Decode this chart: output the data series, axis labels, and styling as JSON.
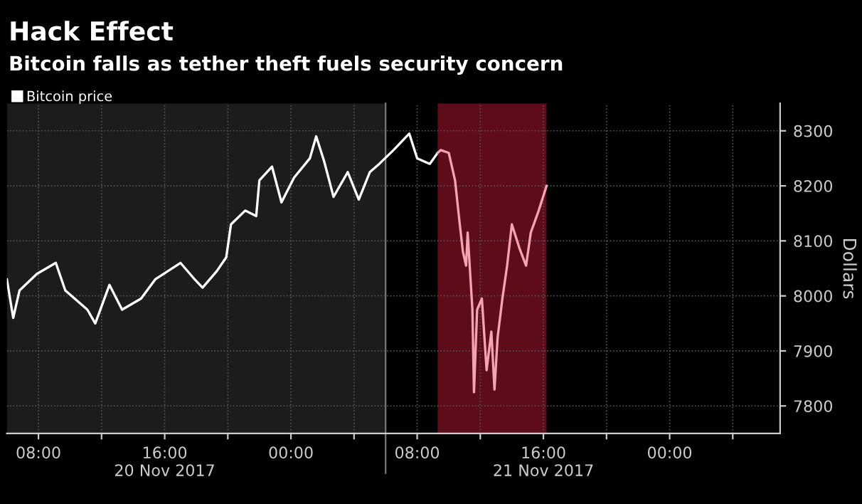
{
  "chart_data": {
    "type": "line",
    "title": "Hack Effect",
    "subtitle": "Bitcoin falls as tether theft fuels security concern",
    "ylabel": "Dollars",
    "series": [
      {
        "name": "Bitcoin price",
        "color": "#ffffff",
        "x": [
          "2017-11-20T06:00",
          "2017-11-20T06:24",
          "2017-11-20T06:48",
          "2017-11-20T07:54",
          "2017-11-20T09:06",
          "2017-11-20T09:42",
          "2017-11-20T11:06",
          "2017-11-20T11:36",
          "2017-11-20T12:30",
          "2017-11-20T13:18",
          "2017-11-20T14:30",
          "2017-11-20T15:24",
          "2017-11-20T17:00",
          "2017-11-20T17:54",
          "2017-11-20T18:24",
          "2017-11-20T19:18",
          "2017-11-20T19:54",
          "2017-11-20T20:12",
          "2017-11-20T21:06",
          "2017-11-20T21:48",
          "2017-11-20T22:00",
          "2017-11-20T22:48",
          "2017-11-20T23:24",
          "2017-11-21T00:12",
          "2017-11-21T01:12",
          "2017-11-21T01:36",
          "2017-11-21T02:06",
          "2017-11-21T02:42",
          "2017-11-21T03:36",
          "2017-11-21T04:18",
          "2017-11-21T05:00",
          "2017-11-21T05:36",
          "2017-11-21T06:30",
          "2017-11-21T07:30",
          "2017-11-21T08:00",
          "2017-11-21T08:48",
          "2017-11-21T09:18"
        ],
        "values": [
          8030,
          7960,
          8010,
          8040,
          8060,
          8010,
          7975,
          7950,
          8020,
          7975,
          7995,
          8030,
          8060,
          8030,
          8015,
          8045,
          8070,
          8130,
          8155,
          8145,
          8210,
          8235,
          8170,
          8215,
          8250,
          8290,
          8245,
          8180,
          8225,
          8175,
          8225,
          8240,
          8265,
          8295,
          8250,
          8240,
          8260
        ]
      },
      {
        "color": "#f4a3b0",
        "x": [
          "2017-11-21T09:18",
          "2017-11-21T09:30",
          "2017-11-21T10:00",
          "2017-11-21T10:24",
          "2017-11-21T10:42",
          "2017-11-21T10:54",
          "2017-11-21T11:06",
          "2017-11-21T11:12",
          "2017-11-21T11:30",
          "2017-11-21T11:36",
          "2017-11-21T11:48",
          "2017-11-21T12:06",
          "2017-11-21T12:24",
          "2017-11-21T12:42",
          "2017-11-21T12:54",
          "2017-11-21T13:06",
          "2017-11-21T13:24",
          "2017-11-21T13:42",
          "2017-11-21T14:00",
          "2017-11-21T14:30",
          "2017-11-21T14:54",
          "2017-11-21T15:12",
          "2017-11-21T15:42",
          "2017-11-21T16:12"
        ],
        "values": [
          8260,
          8265,
          8260,
          8210,
          8130,
          8080,
          8055,
          8115,
          7975,
          7825,
          7975,
          7995,
          7865,
          7935,
          7830,
          7925,
          7995,
          8055,
          8130,
          8085,
          8055,
          8115,
          8155,
          8200
        ]
      }
    ],
    "xlim": [
      "2017-11-20T06:00",
      "2017-11-22T07:00"
    ],
    "ylim": [
      7750,
      8350
    ],
    "xticks": [
      {
        "value": "2017-11-20T08:00",
        "label": "08:00"
      },
      {
        "value": "2017-11-20T12:00",
        "label": null
      },
      {
        "value": "2017-11-20T16:00",
        "label": "16:00\n20 Nov 2017"
      },
      {
        "value": "2017-11-20T20:00",
        "label": null
      },
      {
        "value": "2017-11-21T00:00",
        "label": "00:00"
      },
      {
        "value": "2017-11-21T04:00",
        "label": null
      },
      {
        "value": "2017-11-21T08:00",
        "label": "08:00"
      },
      {
        "value": "2017-11-21T12:00",
        "label": null
      },
      {
        "value": "2017-11-21T16:00",
        "label": "16:00\n21 Nov 2017"
      },
      {
        "value": "2017-11-21T20:00",
        "label": null
      },
      {
        "value": "2017-11-22T00:00",
        "label": "00:00"
      },
      {
        "value": "2017-11-22T04:00",
        "label": null
      }
    ],
    "yticks": [
      7800,
      7900,
      8000,
      8100,
      8200,
      8300
    ],
    "bands": [
      {
        "axis": "x",
        "from": "2017-11-20T06:00",
        "to": "2017-11-21T06:00",
        "color": "#1c1c1c"
      },
      {
        "axis": "x",
        "from": "2017-11-21T09:18",
        "to": "2017-11-21T16:12",
        "color": "#5e0c1a"
      }
    ],
    "ref_lines": [
      {
        "axis": "x",
        "value": "2017-11-21T06:00",
        "color": "#777777",
        "line_style": "solid"
      }
    ],
    "grid": true,
    "legend": "top left",
    "marker": "none",
    "line_style": "solid"
  }
}
